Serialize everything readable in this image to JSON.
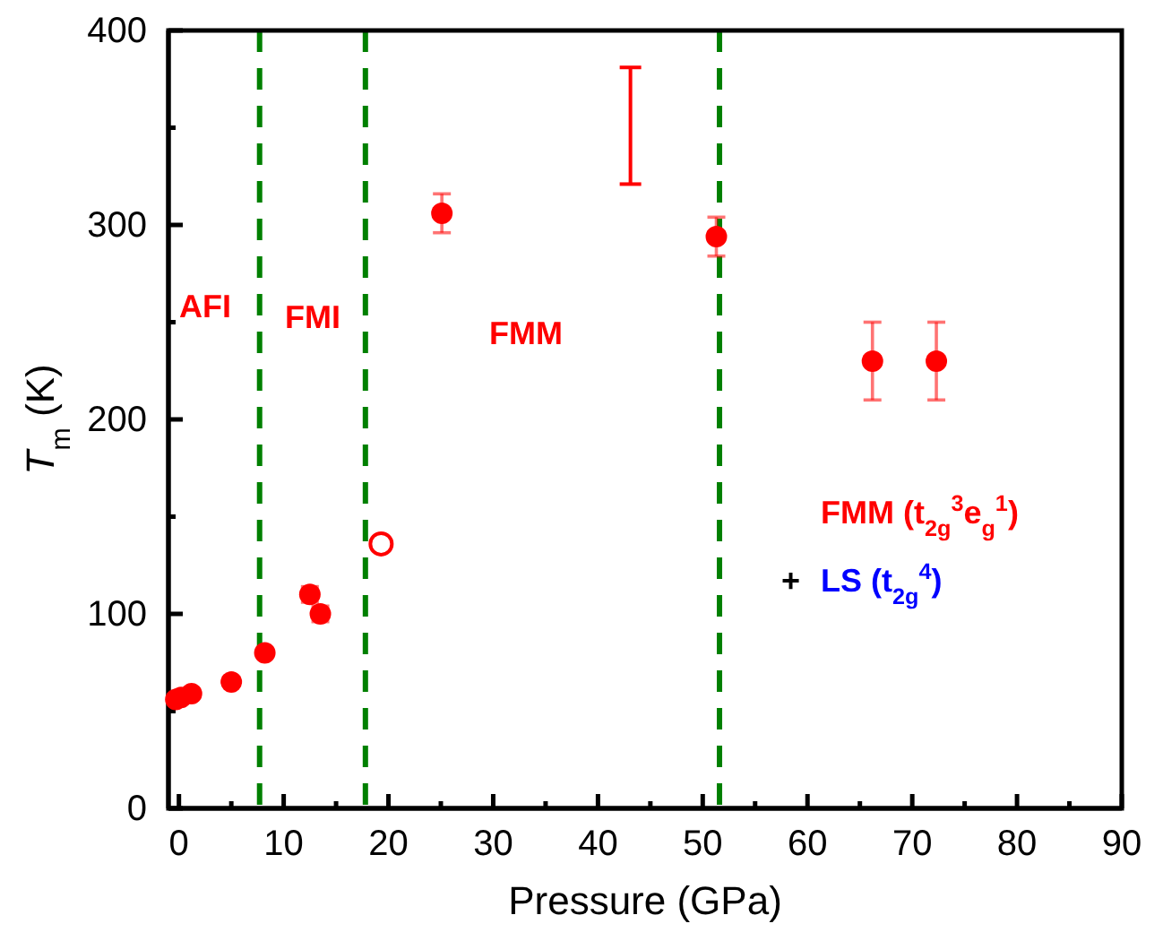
{
  "chart_data": {
    "type": "scatter",
    "xlabel": "Pressure (GPa)",
    "ylabel": "T$_{m}$ (K)",
    "xlim": [
      -1,
      90
    ],
    "ylim": [
      0,
      400
    ],
    "xticks": [
      0,
      {
        "value": 5,
        "label": null
      },
      10,
      {
        "value": 15,
        "label": null
      },
      20,
      {
        "value": 25,
        "label": null
      },
      30,
      {
        "value": 35,
        "label": null
      },
      40,
      {
        "value": 45,
        "label": null
      },
      50,
      {
        "value": 55,
        "label": null
      },
      60,
      {
        "value": 65,
        "label": null
      },
      70,
      {
        "value": 75,
        "label": null
      },
      80,
      {
        "value": 85,
        "label": null
      },
      90
    ],
    "yticks": [
      0,
      {
        "value": 50,
        "label": null
      },
      100,
      {
        "value": 150,
        "label": null
      },
      200,
      {
        "value": 250,
        "label": null
      },
      300,
      {
        "value": 350,
        "label": null
      },
      400
    ],
    "marker": "circle",
    "grid": false,
    "series": [
      {
        "color": "#ff0000",
        "x": [
          -0.3,
          0.2,
          1.2,
          5,
          8.2,
          12.5,
          13.5,
          25.1,
          51.3,
          66.2,
          72.3
        ],
        "values": [
          56,
          57,
          59,
          65,
          80,
          110,
          100,
          306,
          294,
          230,
          230
        ],
        "errors": [
          null,
          null,
          null,
          null,
          null,
          4,
          4,
          10,
          10,
          20,
          20
        ]
      },
      {
        "color": "#ff0000",
        "x": [
          19.3
        ],
        "values": [
          136
        ]
      },
      {
        "type": "bar",
        "color": "#ff0000",
        "x": [
          43.1
        ],
        "base": [
          321
        ],
        "values": [
          60
        ]
      }
    ],
    "ref_lines": [
      {
        "axis": "x",
        "value": 7.7,
        "color": "#008000",
        "line_style": "dashed"
      },
      {
        "axis": "x",
        "value": 17.8,
        "color": "#008000",
        "line_style": "dashed"
      },
      {
        "axis": "x",
        "value": 51.6,
        "color": "#008000",
        "line_style": "dashed"
      }
    ],
    "annotations": [
      "AFI",
      "FMI",
      "FMM",
      "FMM (t$_{2g}$$^{3}$e$_{g}$$^{1}$)",
      "+",
      "LS (t$_{2g}$$^{4}$)"
    ]
  }
}
